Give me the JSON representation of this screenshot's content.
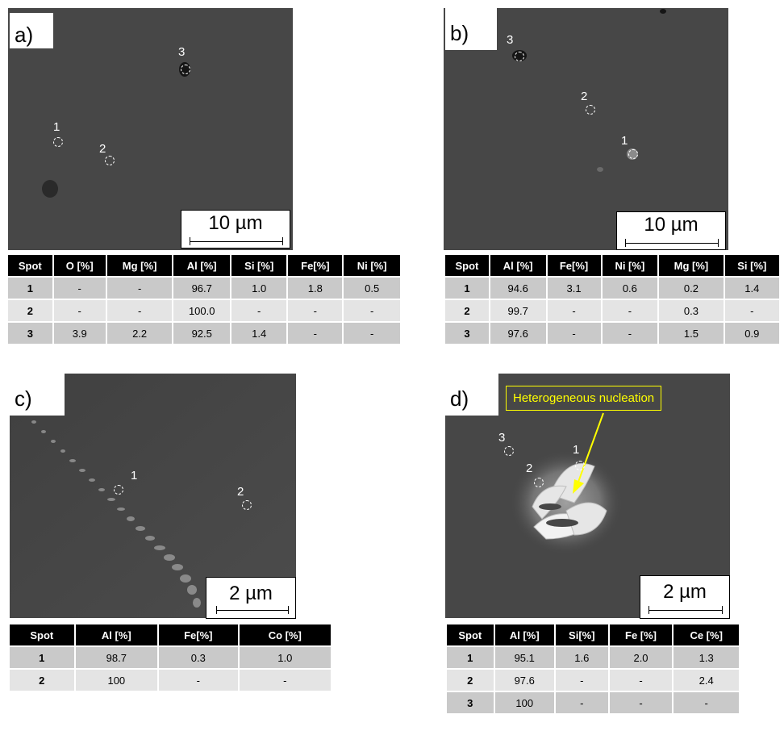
{
  "panels": [
    {
      "label": "a)",
      "scale_bar": "10 µm",
      "spots": [
        "1",
        "2",
        "3"
      ],
      "table": {
        "headers": [
          "Spot",
          "O [%]",
          "Mg [%]",
          "Al [%]",
          "Si [%]",
          "Fe[%]",
          "Ni [%]"
        ],
        "rows": [
          [
            "1",
            "-",
            "-",
            "96.7",
            "1.0",
            "1.8",
            "0.5"
          ],
          [
            "2",
            "-",
            "-",
            "100.0",
            "-",
            "-",
            "-"
          ],
          [
            "3",
            "3.9",
            "2.2",
            "92.5",
            "1.4",
            "-",
            "-"
          ]
        ]
      }
    },
    {
      "label": "b)",
      "scale_bar": "10 µm",
      "spots": [
        "1",
        "2",
        "3"
      ],
      "table": {
        "headers": [
          "Spot",
          "Al [%]",
          "Fe[%]",
          "Ni [%]",
          "Mg [%]",
          "Si [%]"
        ],
        "rows": [
          [
            "1",
            "94.6",
            "3.1",
            "0.6",
            "0.2",
            "1.4"
          ],
          [
            "2",
            "99.7",
            "-",
            "-",
            "0.3",
            "-"
          ],
          [
            "3",
            "97.6",
            "-",
            "-",
            "1.5",
            "0.9"
          ]
        ]
      }
    },
    {
      "label": "c)",
      "scale_bar": "2 µm",
      "spots": [
        "1",
        "2"
      ],
      "table": {
        "headers": [
          "Spot",
          "Al [%]",
          "Fe[%]",
          "Co [%]"
        ],
        "rows": [
          [
            "1",
            "98.7",
            "0.3",
            "1.0"
          ],
          [
            "2",
            "100",
            "-",
            "-"
          ]
        ]
      }
    },
    {
      "label": "d)",
      "scale_bar": "2 µm",
      "annotation": "Heterogeneous nucleation",
      "annotation_color": "#ffff00",
      "spots": [
        "1",
        "2",
        "3"
      ],
      "table": {
        "headers": [
          "Spot",
          "Al [%]",
          "Si[%]",
          "Fe [%]",
          "Ce [%]"
        ],
        "rows": [
          [
            "1",
            "95.1",
            "1.6",
            "2.0",
            "1.3"
          ],
          [
            "2",
            "97.6",
            "-",
            "-",
            "2.4"
          ],
          [
            "3",
            "100",
            "-",
            "-",
            "-"
          ]
        ]
      }
    }
  ]
}
